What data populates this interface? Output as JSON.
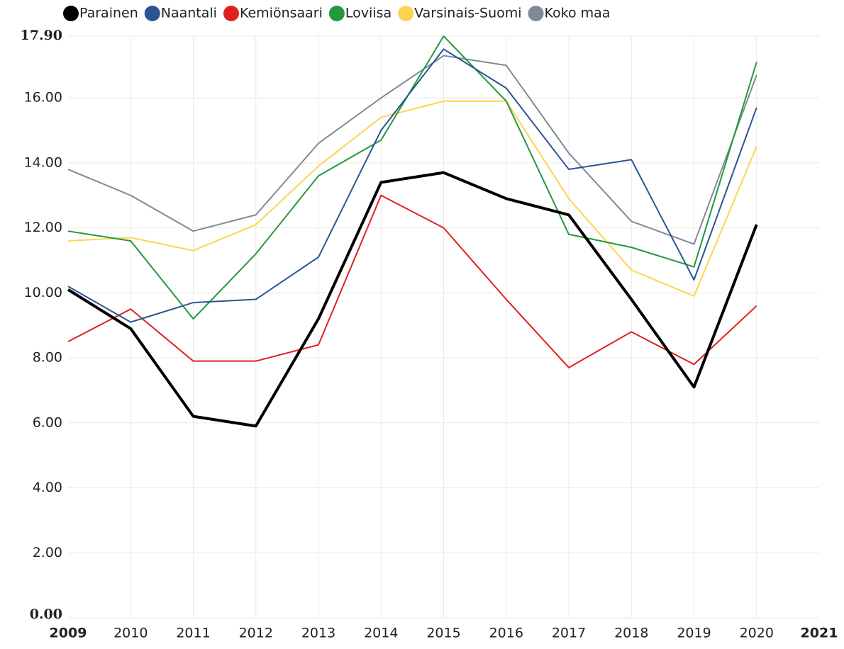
{
  "chart_data": {
    "type": "line",
    "x": [
      2009,
      2010,
      2011,
      2012,
      2013,
      2014,
      2015,
      2016,
      2017,
      2018,
      2019,
      2020
    ],
    "series": [
      {
        "name": "Parainen",
        "color": "#000000",
        "values": [
          10.1,
          8.9,
          6.2,
          5.9,
          9.2,
          13.4,
          13.7,
          12.9,
          12.4,
          9.8,
          7.1,
          12.1
        ]
      },
      {
        "name": "Naantali",
        "color": "#2b5591",
        "values": [
          10.2,
          9.1,
          9.7,
          9.8,
          11.1,
          15.0,
          17.5,
          16.3,
          13.8,
          14.1,
          10.4,
          15.7
        ]
      },
      {
        "name": "Kemiönsaari",
        "color": "#e02020",
        "values": [
          8.5,
          9.5,
          7.9,
          7.9,
          8.4,
          13.0,
          12.0,
          9.8,
          7.7,
          8.8,
          7.8,
          9.6
        ]
      },
      {
        "name": "Loviisa",
        "color": "#22993c",
        "values": [
          11.9,
          11.6,
          9.2,
          11.2,
          13.6,
          14.7,
          17.9,
          15.9,
          11.8,
          11.4,
          10.8,
          17.1
        ]
      },
      {
        "name": "Varsinais-Suomi",
        "color": "#fcd550",
        "values": [
          11.6,
          11.7,
          11.3,
          12.1,
          13.9,
          15.4,
          15.9,
          15.9,
          12.9,
          10.7,
          9.9,
          14.5
        ]
      },
      {
        "name": "Koko maa",
        "color": "#7f8a97",
        "values": [
          13.8,
          13.0,
          11.9,
          12.4,
          14.6,
          16.0,
          17.3,
          17.0,
          14.3,
          12.2,
          11.5,
          16.7
        ]
      }
    ],
    "xlim": [
      2009,
      2021
    ],
    "xticks": [
      2009,
      2010,
      2011,
      2012,
      2013,
      2014,
      2015,
      2016,
      2017,
      2018,
      2019,
      2020,
      2021
    ],
    "ylim": [
      0,
      17.9
    ],
    "yticks": [
      {
        "value": 0,
        "label": "0.00"
      },
      {
        "value": 2,
        "label": "2.00"
      },
      {
        "value": 4,
        "label": "4.00"
      },
      {
        "value": 6,
        "label": "6.00"
      },
      {
        "value": 8,
        "label": "8.00"
      },
      {
        "value": 10,
        "label": "10.00"
      },
      {
        "value": 12,
        "label": "12.00"
      },
      {
        "value": 14,
        "label": "14.00"
      },
      {
        "value": 16,
        "label": "16.00"
      },
      {
        "value": 17.9,
        "label": "17.90"
      }
    ],
    "grid": true,
    "legend": "top"
  }
}
